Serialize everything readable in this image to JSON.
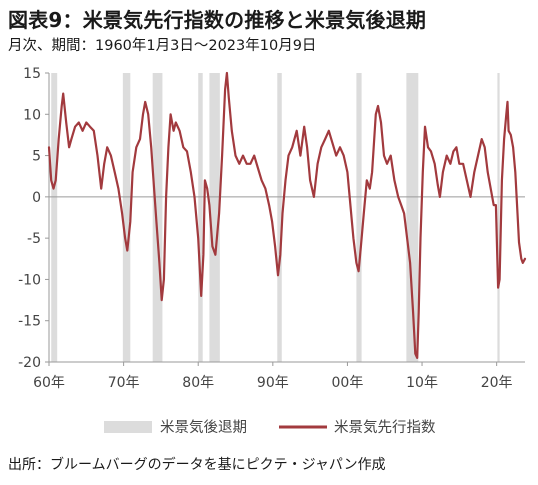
{
  "title": "図表9：米景気先行指数の推移と米景気後退期",
  "subtitle": "月次、期間：1960年1月3日～2023年10月9日",
  "source": "出所：ブルームバーグのデータを基にピクテ・ジャパン作成",
  "colors": {
    "line": "#a23a3e",
    "recession": "#dcdcdc",
    "axis": "#9a9a9a",
    "text": "#444444"
  },
  "chart_data": {
    "type": "line",
    "ylim": [
      -20,
      15
    ],
    "yticks": [
      15,
      10,
      5,
      0,
      -5,
      -10,
      -15,
      -20
    ],
    "xlim": [
      1960.0,
      2023.8
    ],
    "xticks": [
      {
        "value": 1960,
        "label": "60年"
      },
      {
        "value": 1970,
        "label": "70年"
      },
      {
        "value": 1980,
        "label": "80年"
      },
      {
        "value": 1990,
        "label": "90年"
      },
      {
        "value": 2000,
        "label": "00年"
      },
      {
        "value": 2010,
        "label": "10年"
      },
      {
        "value": 2020,
        "label": "20年"
      }
    ],
    "legend": [
      {
        "key": "recession",
        "label": "米景気後退期"
      },
      {
        "key": "line",
        "label": "米景気先行指数"
      }
    ],
    "recessions": [
      [
        1960.3,
        1961.1
      ],
      [
        1969.9,
        1970.9
      ],
      [
        1973.9,
        1975.2
      ],
      [
        1980.0,
        1980.6
      ],
      [
        1981.5,
        1982.9
      ],
      [
        1990.6,
        1991.2
      ],
      [
        2001.2,
        2001.9
      ],
      [
        2007.9,
        2009.5
      ],
      [
        2020.1,
        2020.4
      ]
    ],
    "series": [
      {
        "name": "米景気先行指数",
        "points": [
          [
            1960.0,
            6
          ],
          [
            1960.3,
            2
          ],
          [
            1960.6,
            1
          ],
          [
            1960.9,
            2
          ],
          [
            1961.3,
            7
          ],
          [
            1961.7,
            11
          ],
          [
            1961.9,
            12.5
          ],
          [
            1962.3,
            9
          ],
          [
            1962.7,
            6
          ],
          [
            1963.0,
            7
          ],
          [
            1963.5,
            8.5
          ],
          [
            1964.0,
            9
          ],
          [
            1964.5,
            8
          ],
          [
            1965.0,
            9
          ],
          [
            1965.5,
            8.5
          ],
          [
            1966.0,
            8
          ],
          [
            1966.5,
            5
          ],
          [
            1967.0,
            1
          ],
          [
            1967.4,
            4
          ],
          [
            1967.8,
            6
          ],
          [
            1968.3,
            5
          ],
          [
            1968.8,
            3
          ],
          [
            1969.3,
            1
          ],
          [
            1969.8,
            -2
          ],
          [
            1970.2,
            -5
          ],
          [
            1970.5,
            -6.5
          ],
          [
            1970.9,
            -3
          ],
          [
            1971.2,
            3
          ],
          [
            1971.7,
            6
          ],
          [
            1972.2,
            7
          ],
          [
            1972.6,
            10
          ],
          [
            1972.9,
            11.5
          ],
          [
            1973.3,
            10
          ],
          [
            1973.7,
            6
          ],
          [
            1974.0,
            2
          ],
          [
            1974.4,
            -3
          ],
          [
            1974.8,
            -8
          ],
          [
            1975.1,
            -12.5
          ],
          [
            1975.4,
            -10
          ],
          [
            1975.7,
            0
          ],
          [
            1976.0,
            6
          ],
          [
            1976.3,
            10
          ],
          [
            1976.7,
            8
          ],
          [
            1977.0,
            9
          ],
          [
            1977.5,
            8
          ],
          [
            1978.0,
            6
          ],
          [
            1978.5,
            5.5
          ],
          [
            1979.0,
            3
          ],
          [
            1979.5,
            0
          ],
          [
            1980.0,
            -5
          ],
          [
            1980.4,
            -12
          ],
          [
            1980.7,
            -7
          ],
          [
            1980.9,
            2
          ],
          [
            1981.2,
            1
          ],
          [
            1981.5,
            -1
          ],
          [
            1981.9,
            -6
          ],
          [
            1982.3,
            -7
          ],
          [
            1982.8,
            -2
          ],
          [
            1983.2,
            5
          ],
          [
            1983.6,
            13
          ],
          [
            1983.85,
            15
          ],
          [
            1984.1,
            12
          ],
          [
            1984.5,
            8
          ],
          [
            1985.0,
            5
          ],
          [
            1985.5,
            4
          ],
          [
            1986.0,
            5
          ],
          [
            1986.5,
            4
          ],
          [
            1987.0,
            4
          ],
          [
            1987.5,
            5
          ],
          [
            1988.0,
            3.5
          ],
          [
            1988.5,
            2
          ],
          [
            1989.0,
            1
          ],
          [
            1989.5,
            -1
          ],
          [
            1989.9,
            -3
          ],
          [
            1990.3,
            -6
          ],
          [
            1990.7,
            -9.5
          ],
          [
            1991.0,
            -7
          ],
          [
            1991.3,
            -2
          ],
          [
            1991.7,
            2
          ],
          [
            1992.1,
            5
          ],
          [
            1992.6,
            6
          ],
          [
            1993.2,
            8
          ],
          [
            1993.7,
            5
          ],
          [
            1994.2,
            8.5
          ],
          [
            1994.6,
            6
          ],
          [
            1995.0,
            2
          ],
          [
            1995.5,
            0
          ],
          [
            1996.0,
            4
          ],
          [
            1996.5,
            6
          ],
          [
            1997.0,
            7
          ],
          [
            1997.5,
            8
          ],
          [
            1998.0,
            6.5
          ],
          [
            1998.5,
            5
          ],
          [
            1999.0,
            6
          ],
          [
            1999.5,
            5
          ],
          [
            2000.0,
            3
          ],
          [
            2000.4,
            -1
          ],
          [
            2000.8,
            -5
          ],
          [
            2001.2,
            -8
          ],
          [
            2001.5,
            -9
          ],
          [
            2001.8,
            -6
          ],
          [
            2002.2,
            -2
          ],
          [
            2002.6,
            2
          ],
          [
            2003.0,
            1
          ],
          [
            2003.3,
            3
          ],
          [
            2003.8,
            10
          ],
          [
            2004.1,
            11
          ],
          [
            2004.5,
            9
          ],
          [
            2004.9,
            5
          ],
          [
            2005.3,
            4
          ],
          [
            2005.8,
            5
          ],
          [
            2006.3,
            2
          ],
          [
            2006.8,
            0
          ],
          [
            2007.2,
            -1
          ],
          [
            2007.6,
            -2
          ],
          [
            2008.0,
            -5
          ],
          [
            2008.4,
            -8
          ],
          [
            2008.8,
            -14
          ],
          [
            2009.1,
            -19
          ],
          [
            2009.35,
            -19.5
          ],
          [
            2009.55,
            -14
          ],
          [
            2009.8,
            -5
          ],
          [
            2010.1,
            3
          ],
          [
            2010.4,
            8.5
          ],
          [
            2010.8,
            6
          ],
          [
            2011.2,
            5.5
          ],
          [
            2011.7,
            4
          ],
          [
            2012.1,
            1.5
          ],
          [
            2012.4,
            0
          ],
          [
            2012.8,
            3
          ],
          [
            2013.3,
            5
          ],
          [
            2013.8,
            4
          ],
          [
            2014.2,
            5.5
          ],
          [
            2014.6,
            6
          ],
          [
            2015.0,
            4
          ],
          [
            2015.5,
            4
          ],
          [
            2016.0,
            2
          ],
          [
            2016.5,
            0
          ],
          [
            2017.0,
            3
          ],
          [
            2017.5,
            5
          ],
          [
            2018.0,
            7
          ],
          [
            2018.4,
            6
          ],
          [
            2018.8,
            3
          ],
          [
            2019.2,
            1
          ],
          [
            2019.6,
            -1
          ],
          [
            2019.9,
            -1
          ],
          [
            2020.2,
            -11
          ],
          [
            2020.4,
            -10
          ],
          [
            2020.7,
            2
          ],
          [
            2021.0,
            7
          ],
          [
            2021.3,
            10
          ],
          [
            2021.45,
            11.5
          ],
          [
            2021.6,
            8
          ],
          [
            2021.9,
            7.5
          ],
          [
            2022.2,
            6
          ],
          [
            2022.5,
            3
          ],
          [
            2022.8,
            -2
          ],
          [
            2023.0,
            -5.5
          ],
          [
            2023.3,
            -7.5
          ],
          [
            2023.5,
            -8
          ],
          [
            2023.8,
            -7.5
          ]
        ]
      }
    ]
  }
}
